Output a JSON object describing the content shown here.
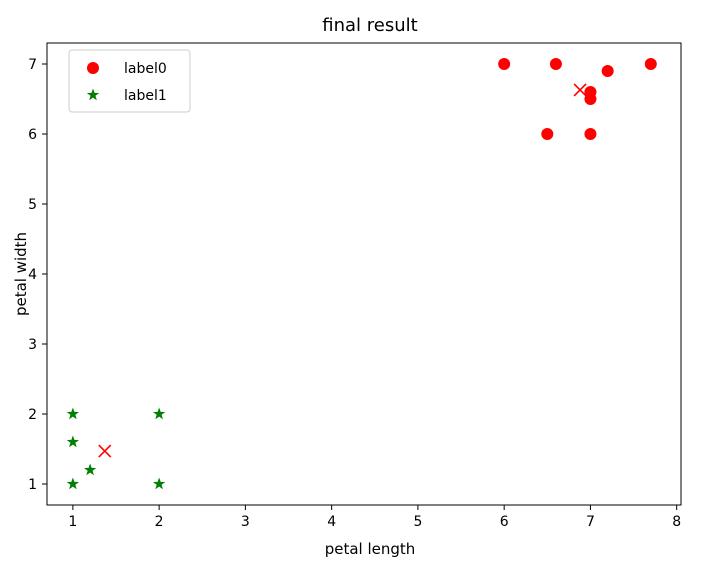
{
  "chart_data": {
    "type": "scatter",
    "title": "final result",
    "xlabel": "petal length",
    "ylabel": "petal width",
    "xlim": [
      0.7,
      8.05
    ],
    "ylim": [
      0.7,
      7.3
    ],
    "xticks": [
      1,
      2,
      3,
      4,
      5,
      6,
      7,
      8
    ],
    "yticks": [
      1,
      2,
      3,
      4,
      5,
      6,
      7
    ],
    "grid": false,
    "legend_position": "top-left",
    "series": [
      {
        "name": "label0",
        "marker": "circle",
        "color": "#ff0000",
        "points": [
          {
            "x": 6.0,
            "y": 7.0
          },
          {
            "x": 6.6,
            "y": 7.0
          },
          {
            "x": 7.7,
            "y": 7.0
          },
          {
            "x": 7.2,
            "y": 6.9
          },
          {
            "x": 7.0,
            "y": 6.6
          },
          {
            "x": 7.0,
            "y": 6.5
          },
          {
            "x": 6.5,
            "y": 6.0
          },
          {
            "x": 7.0,
            "y": 6.0
          }
        ]
      },
      {
        "name": "label1",
        "marker": "star",
        "color": "#008000",
        "points": [
          {
            "x": 1.0,
            "y": 2.0
          },
          {
            "x": 2.0,
            "y": 2.0
          },
          {
            "x": 1.0,
            "y": 1.6
          },
          {
            "x": 1.2,
            "y": 1.2
          },
          {
            "x": 1.0,
            "y": 1.0
          },
          {
            "x": 2.0,
            "y": 1.0
          }
        ]
      }
    ],
    "centroids": {
      "marker": "x",
      "color": "#ff0000",
      "points": [
        {
          "x": 6.88,
          "y": 6.63
        },
        {
          "x": 1.37,
          "y": 1.47
        }
      ]
    }
  }
}
